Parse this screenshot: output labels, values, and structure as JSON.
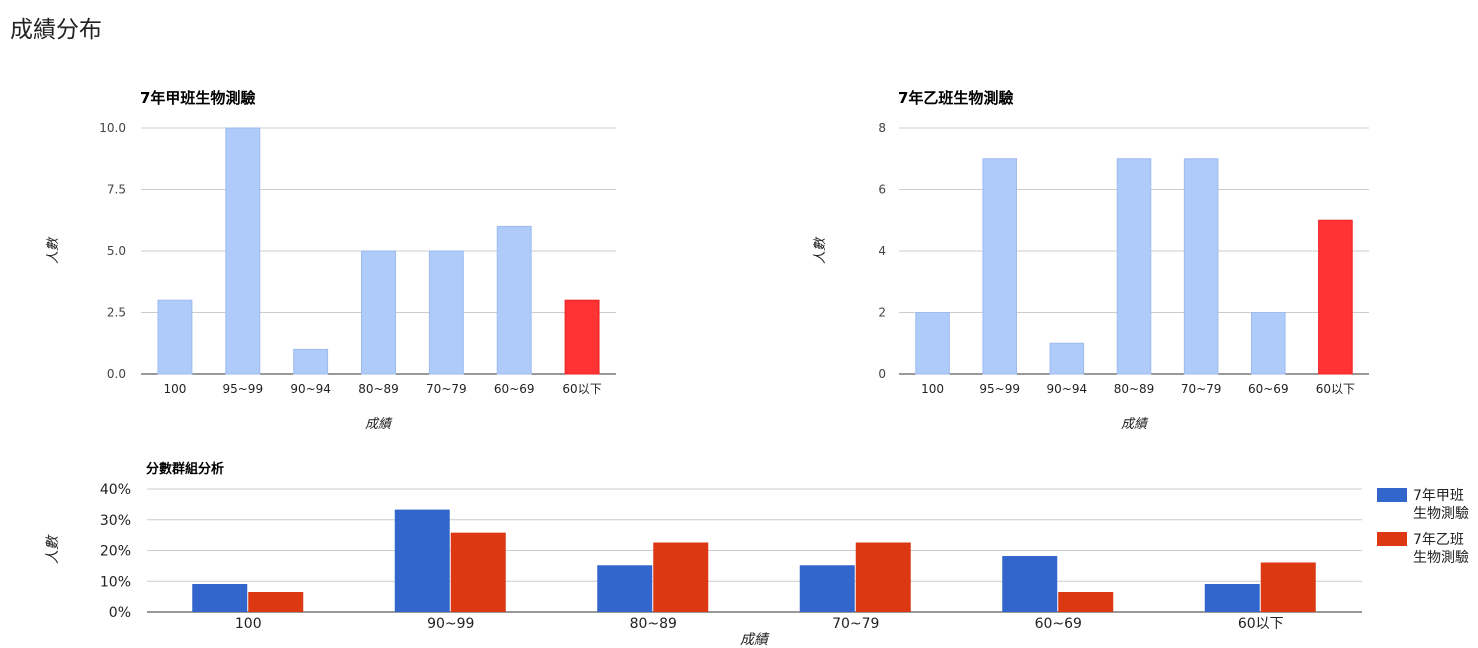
{
  "page": {
    "title": "成績分布"
  },
  "chart_data": [
    {
      "type": "bar",
      "title": "7年甲班生物測驗",
      "xlabel": "成績",
      "ylabel": "人數",
      "categories": [
        "100",
        "95~99",
        "90~94",
        "80~89",
        "70~79",
        "60~69",
        "60以下"
      ],
      "values": [
        3,
        10,
        1,
        5,
        5,
        6,
        3
      ],
      "ylim": [
        0,
        10
      ],
      "yticks": [
        "0.0",
        "2.5",
        "5.0",
        "7.5",
        "10.0"
      ],
      "bar_color": "#aecbfa",
      "highlight_index": 6,
      "highlight_color": "#ff3333",
      "grid": true
    },
    {
      "type": "bar",
      "title": "7年乙班生物測驗",
      "xlabel": "成績",
      "ylabel": "人數",
      "categories": [
        "100",
        "95~99",
        "90~94",
        "80~89",
        "70~79",
        "60~69",
        "60以下"
      ],
      "values": [
        2,
        7,
        1,
        7,
        7,
        2,
        5
      ],
      "ylim": [
        0,
        8
      ],
      "yticks": [
        "0",
        "2",
        "4",
        "6",
        "8"
      ],
      "bar_color": "#aecbfa",
      "highlight_index": 6,
      "highlight_color": "#ff3333",
      "grid": true
    },
    {
      "type": "bar",
      "title": "分數群組分析",
      "xlabel": "成績",
      "ylabel": "人數",
      "categories": [
        "100",
        "90~99",
        "80~89",
        "70~79",
        "60~69",
        "60以下"
      ],
      "series": [
        {
          "name": "7年甲班生物測驗",
          "values": [
            9.1,
            33.3,
            15.2,
            15.2,
            18.2,
            9.1
          ],
          "color": "#3366cc"
        },
        {
          "name": "7年乙班生物測驗",
          "values": [
            6.5,
            25.8,
            22.6,
            22.6,
            6.5,
            16.1
          ],
          "color": "#dc3912"
        }
      ],
      "ylim": [
        0,
        40
      ],
      "yticks": [
        "0%",
        "10%",
        "20%",
        "30%",
        "40%"
      ],
      "legend": "right",
      "grid": true
    }
  ]
}
